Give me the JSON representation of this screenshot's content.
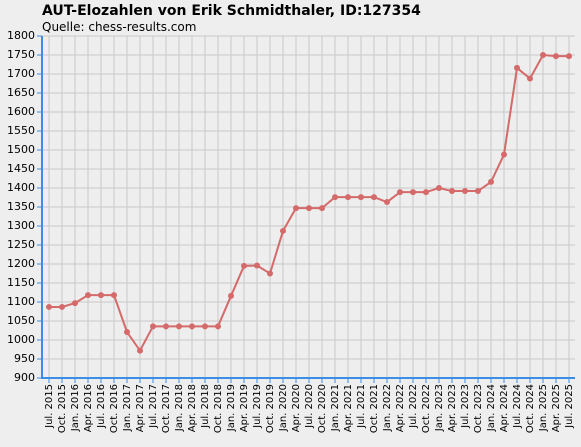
{
  "chart_data": {
    "type": "line",
    "title": "AUT-Elozahlen von Erik Schmidthaler, ID:127354",
    "subtitle": "Quelle: chess-results.com",
    "categories": [
      "Jul. 2015",
      "Oct. 2015",
      "Jan. 2016",
      "Apr. 2016",
      "Jul. 2016",
      "Oct. 2016",
      "Jan. 2017",
      "Apr. 2017",
      "Jul. 2017",
      "Oct. 2017",
      "Jan. 2018",
      "Apr. 2018",
      "Jul. 2018",
      "Oct. 2018",
      "Jan. 2019",
      "Apr. 2019",
      "Jul. 2019",
      "Oct. 2019",
      "Jan. 2020",
      "Apr. 2020",
      "Jul. 2020",
      "Oct. 2020",
      "Jan. 2021",
      "Apr. 2021",
      "Jul. 2021",
      "Oct. 2021",
      "Jan. 2022",
      "Apr. 2022",
      "Jul. 2022",
      "Oct. 2022",
      "Jan. 2023",
      "Apr. 2023",
      "Jul. 2023",
      "Oct. 2023",
      "Jan. 2024",
      "Apr. 2024",
      "Jul. 2024",
      "Oct. 2024",
      "Jan. 2025",
      "Apr. 2025",
      "Jul. 2025"
    ],
    "values": [
      1087,
      1087,
      1097,
      1118,
      1118,
      1118,
      1021,
      972,
      1036,
      1036,
      1036,
      1036,
      1036,
      1036,
      1116,
      1195,
      1196,
      1175,
      1287,
      1347,
      1347,
      1347,
      1376,
      1376,
      1376,
      1376,
      1363,
      1389,
      1389,
      1389,
      1400,
      1392,
      1392,
      1392,
      1416,
      1488,
      1716,
      1688,
      1750,
      1747,
      1747
    ],
    "color": "#d46a6a",
    "ylim": [
      900,
      1800
    ],
    "yticks": [
      900,
      950,
      1000,
      1050,
      1100,
      1150,
      1200,
      1250,
      1300,
      1350,
      1400,
      1450,
      1500,
      1550,
      1600,
      1650,
      1700,
      1750,
      1800
    ],
    "grid": true
  }
}
